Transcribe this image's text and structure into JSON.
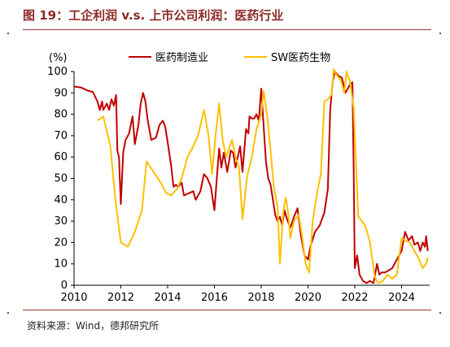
{
  "header": {
    "title": "图 19：工企利润 v.s. 上市公司利润：医药行业"
  },
  "footer": {
    "source": "资料来源：Wind，德邦研究所"
  },
  "colors": {
    "series_1": "#c00000",
    "series_2": "#ffc000",
    "title": "#8b2a26",
    "rule": "#9c3b35"
  },
  "chart_data": {
    "type": "line",
    "ylabel": "(%)",
    "ylim": [
      0,
      100
    ],
    "yticks": [
      0,
      10,
      20,
      30,
      40,
      50,
      60,
      70,
      80,
      90,
      100
    ],
    "xlim": [
      2010,
      2025.2
    ],
    "xticks": [
      2010,
      2012,
      2014,
      2016,
      2018,
      2020,
      2022,
      2024
    ],
    "legend_position": "top",
    "grid": false,
    "series": [
      {
        "name": "医药制造业",
        "color": "#c00000",
        "points": [
          [
            2010.0,
            93
          ],
          [
            2010.3,
            92.5
          ],
          [
            2010.6,
            91
          ],
          [
            2010.8,
            90.5
          ],
          [
            2011.0,
            86
          ],
          [
            2011.1,
            82
          ],
          [
            2011.2,
            86
          ],
          [
            2011.25,
            82
          ],
          [
            2011.4,
            85
          ],
          [
            2011.5,
            82
          ],
          [
            2011.6,
            87
          ],
          [
            2011.7,
            84
          ],
          [
            2011.8,
            89
          ],
          [
            2011.85,
            63
          ],
          [
            2011.92,
            60
          ],
          [
            2012.0,
            38
          ],
          [
            2012.1,
            62
          ],
          [
            2012.2,
            68
          ],
          [
            2012.35,
            71
          ],
          [
            2012.5,
            79
          ],
          [
            2012.6,
            66
          ],
          [
            2012.75,
            75
          ],
          [
            2012.85,
            85
          ],
          [
            2012.95,
            90
          ],
          [
            2013.05,
            86
          ],
          [
            2013.15,
            77
          ],
          [
            2013.3,
            68
          ],
          [
            2013.5,
            69
          ],
          [
            2013.65,
            75
          ],
          [
            2013.8,
            77
          ],
          [
            2013.9,
            74
          ],
          [
            2014.0,
            67
          ],
          [
            2014.15,
            56
          ],
          [
            2014.25,
            46
          ],
          [
            2014.35,
            47
          ],
          [
            2014.45,
            46
          ],
          [
            2014.6,
            48
          ],
          [
            2014.7,
            42
          ],
          [
            2014.9,
            43
          ],
          [
            2015.1,
            44
          ],
          [
            2015.2,
            40
          ],
          [
            2015.4,
            44
          ],
          [
            2015.55,
            52
          ],
          [
            2015.7,
            50
          ],
          [
            2015.85,
            46
          ],
          [
            2016.0,
            35
          ],
          [
            2016.1,
            50
          ],
          [
            2016.2,
            64
          ],
          [
            2016.3,
            55
          ],
          [
            2016.4,
            62
          ],
          [
            2016.55,
            53
          ],
          [
            2016.7,
            63
          ],
          [
            2016.8,
            62
          ],
          [
            2016.9,
            55
          ],
          [
            2017.0,
            60
          ],
          [
            2017.1,
            65
          ],
          [
            2017.2,
            53
          ],
          [
            2017.35,
            73
          ],
          [
            2017.45,
            71
          ],
          [
            2017.5,
            79
          ],
          [
            2017.6,
            78
          ],
          [
            2017.7,
            78
          ],
          [
            2017.8,
            80
          ],
          [
            2017.9,
            77
          ],
          [
            2018.0,
            92
          ],
          [
            2018.1,
            75
          ],
          [
            2018.2,
            58
          ],
          [
            2018.3,
            50
          ],
          [
            2018.4,
            47
          ],
          [
            2018.5,
            40
          ],
          [
            2018.6,
            33
          ],
          [
            2018.7,
            30
          ],
          [
            2018.8,
            32
          ],
          [
            2018.9,
            28
          ],
          [
            2019.0,
            35
          ],
          [
            2019.1,
            31
          ],
          [
            2019.25,
            27
          ],
          [
            2019.4,
            32
          ],
          [
            2019.55,
            36
          ],
          [
            2019.7,
            23
          ],
          [
            2019.85,
            14
          ],
          [
            2020.0,
            12
          ],
          [
            2020.1,
            18
          ],
          [
            2020.3,
            25
          ],
          [
            2020.5,
            28
          ],
          [
            2020.7,
            34
          ],
          [
            2020.85,
            45
          ],
          [
            2020.95,
            82
          ],
          [
            2021.05,
            95
          ],
          [
            2021.15,
            100
          ],
          [
            2021.3,
            98
          ],
          [
            2021.45,
            97
          ],
          [
            2021.6,
            90
          ],
          [
            2021.7,
            92
          ],
          [
            2021.8,
            94
          ],
          [
            2021.9,
            95
          ],
          [
            2021.95,
            55
          ],
          [
            2022.0,
            8
          ],
          [
            2022.1,
            14
          ],
          [
            2022.2,
            5
          ],
          [
            2022.35,
            2
          ],
          [
            2022.5,
            1
          ],
          [
            2022.65,
            2
          ],
          [
            2022.8,
            1
          ],
          [
            2022.95,
            10
          ],
          [
            2023.05,
            5
          ],
          [
            2023.15,
            6
          ],
          [
            2023.3,
            6
          ],
          [
            2023.45,
            7
          ],
          [
            2023.6,
            8
          ],
          [
            2023.8,
            12
          ],
          [
            2024.0,
            16
          ],
          [
            2024.15,
            25
          ],
          [
            2024.3,
            21
          ],
          [
            2024.45,
            23
          ],
          [
            2024.55,
            19
          ],
          [
            2024.7,
            20
          ],
          [
            2024.8,
            16
          ],
          [
            2024.9,
            20
          ],
          [
            2025.0,
            18
          ],
          [
            2025.05,
            23
          ],
          [
            2025.12,
            16
          ]
        ]
      },
      {
        "name": "SW医药生物",
        "color": "#ffc000",
        "points": [
          [
            2011.0,
            77
          ],
          [
            2011.25,
            79
          ],
          [
            2011.55,
            65
          ],
          [
            2011.8,
            37
          ],
          [
            2012.0,
            20
          ],
          [
            2012.3,
            18
          ],
          [
            2012.6,
            25
          ],
          [
            2012.9,
            35
          ],
          [
            2013.1,
            58
          ],
          [
            2013.4,
            53
          ],
          [
            2013.7,
            48
          ],
          [
            2013.95,
            43
          ],
          [
            2014.15,
            42
          ],
          [
            2014.4,
            45
          ],
          [
            2014.6,
            50
          ],
          [
            2014.85,
            60
          ],
          [
            2015.05,
            64
          ],
          [
            2015.3,
            70
          ],
          [
            2015.55,
            82
          ],
          [
            2015.75,
            70
          ],
          [
            2015.9,
            52
          ],
          [
            2016.05,
            70
          ],
          [
            2016.2,
            85
          ],
          [
            2016.35,
            68
          ],
          [
            2016.5,
            60
          ],
          [
            2016.75,
            68
          ],
          [
            2016.9,
            60
          ],
          [
            2017.05,
            55
          ],
          [
            2017.2,
            31
          ],
          [
            2017.4,
            51
          ],
          [
            2017.6,
            60
          ],
          [
            2017.8,
            73
          ],
          [
            2018.0,
            80
          ],
          [
            2018.1,
            91
          ],
          [
            2018.25,
            80
          ],
          [
            2018.4,
            63
          ],
          [
            2018.55,
            45
          ],
          [
            2018.7,
            37
          ],
          [
            2018.8,
            10
          ],
          [
            2018.95,
            35
          ],
          [
            2019.05,
            41
          ],
          [
            2019.15,
            34
          ],
          [
            2019.25,
            22
          ],
          [
            2019.4,
            30
          ],
          [
            2019.6,
            33
          ],
          [
            2019.75,
            23
          ],
          [
            2019.9,
            10
          ],
          [
            2020.05,
            6
          ],
          [
            2020.2,
            30
          ],
          [
            2020.4,
            44
          ],
          [
            2020.55,
            52
          ],
          [
            2020.7,
            86
          ],
          [
            2020.85,
            87
          ],
          [
            2021.0,
            89
          ],
          [
            2021.1,
            101
          ],
          [
            2021.25,
            98
          ],
          [
            2021.4,
            96
          ],
          [
            2021.55,
            90
          ],
          [
            2021.65,
            100
          ],
          [
            2021.8,
            95
          ],
          [
            2021.95,
            83
          ],
          [
            2022.15,
            32
          ],
          [
            2022.3,
            30
          ],
          [
            2022.45,
            28
          ],
          [
            2022.65,
            20
          ],
          [
            2022.85,
            4
          ],
          [
            2023.0,
            1
          ],
          [
            2023.2,
            2
          ],
          [
            2023.4,
            5
          ],
          [
            2023.6,
            3
          ],
          [
            2023.8,
            5
          ],
          [
            2024.0,
            22
          ],
          [
            2024.15,
            21
          ],
          [
            2024.35,
            20
          ],
          [
            2024.55,
            16
          ],
          [
            2024.75,
            12
          ],
          [
            2024.9,
            8
          ],
          [
            2025.05,
            10
          ],
          [
            2025.12,
            13
          ]
        ]
      }
    ]
  }
}
